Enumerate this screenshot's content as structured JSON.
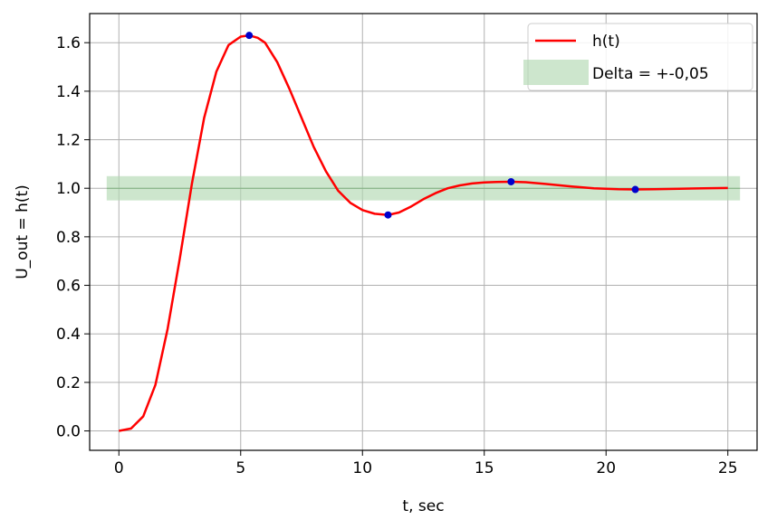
{
  "chart_data": {
    "type": "line",
    "xlabel": "t, sec",
    "ylabel": "U_out = h(t)",
    "xlim": [
      -1.2,
      26.2
    ],
    "ylim": [
      -0.08,
      1.72
    ],
    "xticks": [
      0,
      5,
      10,
      15,
      20,
      25
    ],
    "yticks": [
      0.0,
      0.2,
      0.4,
      0.6,
      0.8,
      1.0,
      1.2,
      1.4,
      1.6
    ],
    "ytick_labels": [
      "0.0",
      "0.2",
      "0.4",
      "0.6",
      "0.8",
      "1.0",
      "1.2",
      "1.4",
      "1.6"
    ],
    "grid": true,
    "legend_position": "top-right",
    "series": [
      {
        "name": "h(t)",
        "color": "#ff0000",
        "x": [
          0,
          0.5,
          1.0,
          1.5,
          2.0,
          2.5,
          3.0,
          3.5,
          4.0,
          4.5,
          5.0,
          5.35,
          5.7,
          6.0,
          6.5,
          7.0,
          7.5,
          8.0,
          8.5,
          9.0,
          9.5,
          10.0,
          10.5,
          11.05,
          11.5,
          12.0,
          12.5,
          13.0,
          13.5,
          14.0,
          14.5,
          15.0,
          15.5,
          16.1,
          16.7,
          17.5,
          18.5,
          19.5,
          20.5,
          21.2,
          22.0,
          23.0,
          24.0,
          25.0
        ],
        "y": [
          0.0,
          0.01,
          0.06,
          0.19,
          0.42,
          0.71,
          1.02,
          1.29,
          1.48,
          1.59,
          1.625,
          1.63,
          1.62,
          1.6,
          1.52,
          1.41,
          1.29,
          1.17,
          1.07,
          0.99,
          0.94,
          0.91,
          0.895,
          0.89,
          0.9,
          0.925,
          0.955,
          0.98,
          1.0,
          1.012,
          1.02,
          1.024,
          1.026,
          1.027,
          1.025,
          1.018,
          1.008,
          1.0,
          0.996,
          0.995,
          0.996,
          0.998,
          1.0,
          1.001
        ]
      }
    ],
    "band": {
      "name": "Delta = +-0,05",
      "color": "#b2d8b2",
      "center": 1.0,
      "lower": 0.95,
      "upper": 1.05,
      "x_range": [
        -0.5,
        25.5
      ]
    },
    "markers": {
      "color": "#0000cc",
      "points": [
        {
          "x": 5.35,
          "y": 1.63
        },
        {
          "x": 11.05,
          "y": 0.89
        },
        {
          "x": 16.1,
          "y": 1.027
        },
        {
          "x": 21.2,
          "y": 0.995
        }
      ]
    }
  }
}
